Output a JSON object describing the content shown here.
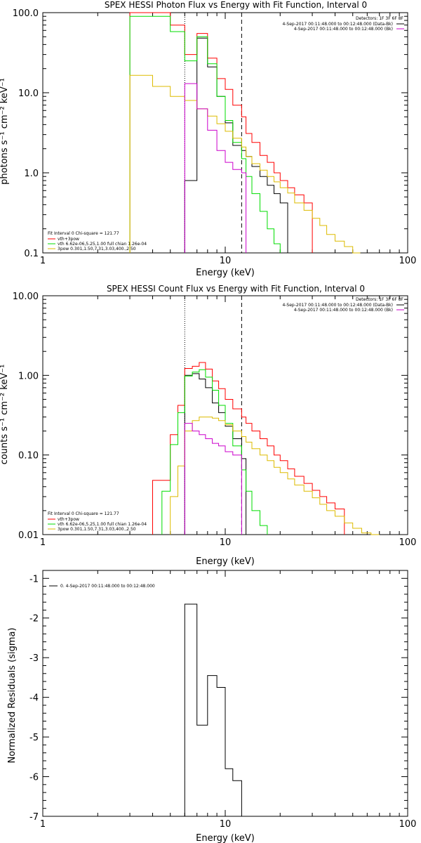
{
  "chart_data": [
    {
      "type": "line",
      "title": "SPEX HESSI Photon Flux vs Energy with Fit Function, Interval 0",
      "xlabel": "Energy (keV)",
      "ylabel": "photons s⁻¹ cm⁻² keV⁻¹",
      "xscale": "log",
      "yscale": "log",
      "xlim": [
        1,
        100
      ],
      "ylim": [
        0.1,
        100
      ],
      "xticks": [
        "1",
        "10",
        "100"
      ],
      "yticks": [
        "0.1",
        "1.0",
        "10.0",
        "100.0"
      ],
      "ytick_values": [
        0.1,
        1,
        10,
        100
      ],
      "vlines": [
        {
          "x": 6,
          "style": "dotted"
        },
        {
          "x": 12.3,
          "style": "dashed"
        }
      ],
      "info_lines": [
        "Detectors: 1F 3F 6F 8F",
        "4-Sep-2017 00:11:48.000 to 00:12:48.000 (Data-Bk)",
        "4-Sep-2017 00:11:48.000 to 00:12:48.000 (Bk)"
      ],
      "info_colors": [
        "#000000",
        "#000000",
        "#cc00cc"
      ],
      "legend_header": "Fit Interval 0   Chi-square = 121.77",
      "legend": [
        {
          "label": "vth+3pow",
          "color": "#ff0000"
        },
        {
          "label": "vth 6.62e-06,5.25,1.00  full chian 1.26e-04",
          "color": "#00dd00"
        },
        {
          "label": "3pow 0.301,1.50,7.31,3.03,400.,2.50",
          "color": "#ddbb00"
        }
      ],
      "edges": [
        3,
        4,
        5,
        6,
        7,
        8,
        9,
        10,
        11,
        12.3,
        13,
        14,
        15.5,
        17,
        18.5,
        20,
        22,
        24,
        27,
        30,
        33,
        36,
        40,
        45,
        50,
        55
      ],
      "series": [
        {
          "name": "data",
          "color": "#000000",
          "values": [
            null,
            null,
            null,
            0.8,
            48,
            21,
            9,
            4.2,
            2.2,
            1.9,
            1.6,
            1.2,
            0.9,
            0.7,
            0.55,
            0.42,
            null,
            null,
            null,
            null,
            null,
            null,
            null,
            null,
            null
          ]
        },
        {
          "name": "vth+3pow",
          "color": "#ff0000",
          "values": [
            100,
            100,
            70,
            30,
            55,
            27,
            15,
            11,
            7,
            5,
            3.1,
            2.4,
            1.65,
            1.35,
            1.0,
            0.8,
            0.65,
            0.53,
            0.42,
            null,
            null,
            null,
            null,
            null,
            null
          ]
        },
        {
          "name": "vth",
          "color": "#00dd00",
          "values": [
            90,
            90,
            58,
            25,
            50,
            23,
            9,
            4.5,
            2.4,
            1.5,
            0.9,
            0.55,
            0.33,
            0.2,
            0.13,
            null,
            null,
            null,
            null,
            null,
            null,
            null,
            null,
            null,
            null
          ]
        },
        {
          "name": "3pow",
          "color": "#ddbb00",
          "values": [
            16.5,
            12,
            9,
            8,
            6.3,
            5.1,
            4.1,
            3.3,
            2.7,
            2.1,
            1.6,
            1.3,
            1.08,
            0.9,
            0.77,
            0.65,
            0.56,
            0.42,
            0.34,
            0.27,
            0.22,
            0.17,
            0.14,
            0.12,
            0.1
          ]
        },
        {
          "name": "Bk",
          "color": "#cc00cc",
          "values": [
            null,
            null,
            null,
            13,
            6.3,
            3.4,
            1.9,
            1.35,
            1.1,
            1.0,
            null,
            null,
            null,
            null,
            null,
            null,
            null,
            null,
            null,
            null,
            null,
            null,
            null,
            null,
            null
          ]
        }
      ]
    },
    {
      "type": "line",
      "title": "SPEX HESSI Count Flux vs Energy with Fit Function, Interval 0",
      "xlabel": "Energy (keV)",
      "ylabel": "counts s⁻¹ cm⁻² keV⁻¹",
      "xscale": "log",
      "yscale": "log",
      "xlim": [
        1,
        100
      ],
      "ylim": [
        0.01,
        10
      ],
      "xticks": [
        "1",
        "10",
        "100"
      ],
      "yticks": [
        "0.01",
        "0.10",
        "1.00",
        "10.00"
      ],
      "ytick_values": [
        0.01,
        0.1,
        1,
        10
      ],
      "vlines": [
        {
          "x": 6,
          "style": "dotted"
        },
        {
          "x": 12.3,
          "style": "dashed"
        }
      ],
      "info_lines": [
        "Detectors: 1F 3F 6F 8F",
        "4-Sep-2017 00:11:48.000 to 00:12:48.000 (Data-Bk)",
        "4-Sep-2017 00:11:48.000 to 00:12:48.000 (Bk)"
      ],
      "info_colors": [
        "#000000",
        "#000000",
        "#cc00cc"
      ],
      "legend_header": "Fit Interval 0   Chi-square = 121.77",
      "legend": [
        {
          "label": "vth+3pow",
          "color": "#ff0000"
        },
        {
          "label": "vth 6.62e-06,5.25,1.00  full chian 1.26e-04",
          "color": "#00dd00"
        },
        {
          "label": "3pow 0.301,1.50,7.31,3.03,400.,2.50",
          "color": "#ddbb00"
        }
      ],
      "edges": [
        4,
        4.5,
        5,
        5.5,
        6,
        6.6,
        7.2,
        7.8,
        8.5,
        9.2,
        10,
        11,
        12.3,
        13,
        14,
        15.5,
        17,
        18.5,
        20,
        22,
        24,
        27,
        30,
        33,
        36,
        40,
        45,
        50,
        56,
        63,
        70
      ],
      "series": [
        {
          "name": "data",
          "color": "#000000",
          "values": [
            null,
            null,
            null,
            null,
            1.0,
            1.05,
            0.9,
            0.7,
            0.45,
            0.34,
            0.23,
            0.16,
            0.09,
            null,
            null,
            null,
            null,
            null,
            null,
            null,
            null,
            null,
            null,
            null,
            null,
            null,
            null,
            null,
            null,
            null
          ]
        },
        {
          "name": "vth+3pow",
          "color": "#ff0000",
          "values": [
            0.048,
            0.048,
            0.18,
            0.42,
            1.22,
            1.3,
            1.45,
            1.2,
            0.85,
            0.68,
            0.5,
            0.38,
            0.3,
            0.25,
            0.2,
            0.16,
            0.13,
            0.1,
            0.085,
            0.067,
            0.054,
            0.044,
            0.036,
            0.03,
            0.025,
            0.021,
            null,
            null,
            null,
            null
          ]
        },
        {
          "name": "vth",
          "color": "#00dd00",
          "values": [
            null,
            0.035,
            0.135,
            0.34,
            0.98,
            1.1,
            1.18,
            0.95,
            0.65,
            0.42,
            0.25,
            0.13,
            0.065,
            0.035,
            0.02,
            0.013,
            null,
            null,
            null,
            null,
            null,
            null,
            null,
            null,
            null,
            null,
            null,
            null,
            null,
            null
          ]
        },
        {
          "name": "3pow",
          "color": "#ddbb00",
          "values": [
            null,
            null,
            0.03,
            0.073,
            0.2,
            0.27,
            0.3,
            0.3,
            0.29,
            0.27,
            0.24,
            0.2,
            0.17,
            0.145,
            0.12,
            0.1,
            0.085,
            0.07,
            0.06,
            0.05,
            0.042,
            0.035,
            0.029,
            0.024,
            0.02,
            0.017,
            0.014,
            0.012,
            0.0105,
            0.0095
          ]
        },
        {
          "name": "Bk",
          "color": "#cc00cc",
          "values": [
            null,
            null,
            null,
            null,
            0.25,
            0.2,
            0.18,
            0.16,
            0.14,
            0.13,
            0.11,
            0.1,
            null,
            null,
            null,
            null,
            null,
            null,
            null,
            null,
            null,
            null,
            null,
            null,
            null,
            null,
            null,
            null,
            null,
            null
          ]
        }
      ]
    },
    {
      "type": "line",
      "title": "",
      "xlabel": "Energy (keV)",
      "ylabel": "Normalized Residuals (sigma)",
      "xscale": "log",
      "yscale": "linear",
      "xlim": [
        1,
        100
      ],
      "ylim": [
        -7,
        -0.8
      ],
      "xticks": [
        "1",
        "10",
        "100"
      ],
      "yticks": [
        "-7",
        "-6",
        "-5",
        "-4",
        "-3",
        "-2",
        "-1"
      ],
      "ytick_values": [
        -7,
        -6,
        -5,
        -4,
        -3,
        -2,
        -1
      ],
      "legend": [
        {
          "label": "0.  4-Sep-2017 00:11:48.000 to 00:12:48.000",
          "color": "#000000"
        }
      ],
      "edges": [
        6,
        7,
        8,
        9,
        10,
        11,
        12.3
      ],
      "series": [
        {
          "name": "residuals",
          "color": "#000000",
          "values": [
            -1.65,
            -4.7,
            -3.45,
            -3.75,
            -5.8,
            -6.1
          ]
        }
      ]
    }
  ]
}
